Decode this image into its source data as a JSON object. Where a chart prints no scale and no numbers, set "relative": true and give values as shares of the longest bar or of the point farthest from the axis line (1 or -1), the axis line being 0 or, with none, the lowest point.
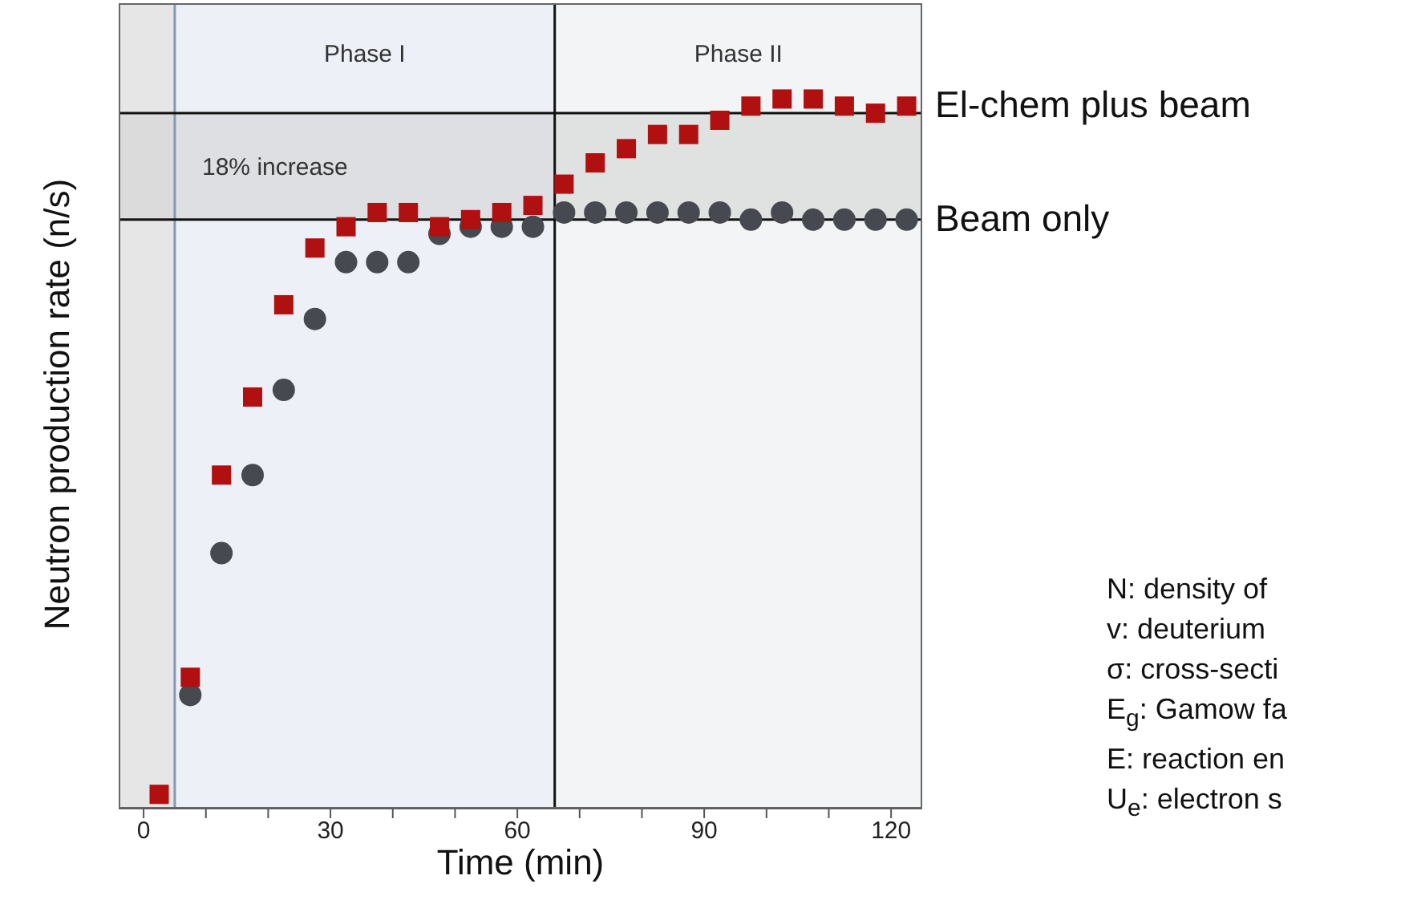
{
  "chart_data": {
    "type": "scatter",
    "xlabel": "Time (min)",
    "ylabel": "Neutron production rate (n/s)",
    "relative": true,
    "x": [
      2.5,
      7.5,
      12.5,
      17.5,
      22.5,
      27.5,
      32.5,
      37.5,
      42.5,
      47.5,
      52.5,
      57.5,
      62.5,
      67.5,
      72.5,
      77.5,
      82.5,
      87.5,
      92.5,
      97.5,
      102.5,
      107.5,
      112.5,
      117.5,
      122.5
    ],
    "xlim": [
      -4,
      125
    ],
    "xticks": [
      0,
      {
        "value": 10,
        "label": null
      },
      {
        "value": 20,
        "label": null
      },
      30,
      {
        "value": 40,
        "label": null
      },
      {
        "value": 50,
        "label": null
      },
      60,
      {
        "value": 70,
        "label": null
      },
      {
        "value": 80,
        "label": null
      },
      90,
      {
        "value": 100,
        "label": null
      },
      {
        "value": 110,
        "label": null
      },
      120
    ],
    "series": [
      {
        "name": "El-chem plus beam",
        "color": "#b01010",
        "marker": "square",
        "values": [
          0.02,
          0.185,
          0.47,
          0.58,
          0.71,
          0.79,
          0.82,
          0.84,
          0.84,
          0.82,
          0.83,
          0.84,
          0.85,
          0.88,
          0.91,
          0.93,
          0.95,
          0.95,
          0.97,
          0.99,
          1,
          1,
          0.99,
          0.98,
          0.99
        ]
      },
      {
        "name": "Beam only",
        "color": "#464a50",
        "marker": "circle",
        "values": [
          null,
          0.16,
          0.36,
          0.47,
          0.59,
          0.69,
          0.77,
          0.77,
          0.77,
          0.81,
          0.82,
          0.82,
          0.82,
          0.84,
          0.84,
          0.84,
          0.84,
          0.84,
          0.84,
          0.83,
          0.84,
          0.83,
          0.83,
          0.83,
          0.83
        ]
      }
    ],
    "bands": [
      {
        "axis": "x",
        "from": -4,
        "to": 5,
        "color": "#e6e6e6"
      },
      {
        "axis": "x",
        "from": 5,
        "to": 66,
        "label": "Phase I",
        "color": "#edf1f7"
      },
      {
        "axis": "x",
        "from": 66,
        "to": 125,
        "label": "Phase II",
        "color": "#f3f4f5"
      },
      {
        "axis": "y",
        "from": 0.83,
        "to": 0.98,
        "label": "18% increase",
        "color": "#d4d4d4"
      }
    ],
    "ref_lines": [
      {
        "axis": "x",
        "value": 5,
        "color": "#7f9bb5"
      },
      {
        "axis": "x",
        "value": 66,
        "color": "#111111"
      },
      {
        "axis": "y",
        "value": 0.98,
        "color": "#111111"
      },
      {
        "axis": "y",
        "value": 0.83,
        "color": "#111111"
      }
    ],
    "annotations": [
      "N: density of",
      "v: deuterium",
      "σ: cross-secti",
      "E$_{g}$: Gamow fa",
      "E: reaction en",
      "U$_{e}$: electron s"
    ]
  }
}
